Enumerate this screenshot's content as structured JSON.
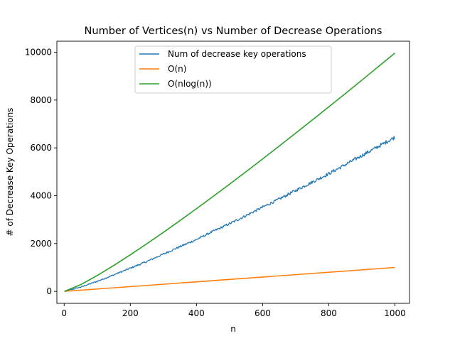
{
  "chart_data": {
    "type": "line",
    "title": "Number of Vertices(n) vs Number of Decrease Operations",
    "xlabel": "n",
    "ylabel": "# of Decrease Key Operations",
    "xlim": [
      -22,
      1044
    ],
    "ylim": [
      -500,
      10460
    ],
    "xticks": [
      0,
      200,
      400,
      600,
      800,
      1000
    ],
    "yticks": [
      0,
      2000,
      4000,
      6000,
      8000,
      10000
    ],
    "xtick_labels": [
      "0",
      "200",
      "400",
      "600",
      "800",
      "1000"
    ],
    "ytick_labels": [
      "0",
      "2000",
      "4000",
      "6000",
      "8000",
      "10000"
    ],
    "legend_position": "upper-center",
    "series": [
      {
        "name": "Num of decrease key operations",
        "color": "#1f77b4",
        "noisy": true,
        "x": [
          1,
          50,
          100,
          150,
          200,
          250,
          300,
          350,
          400,
          450,
          500,
          550,
          600,
          650,
          700,
          750,
          800,
          850,
          900,
          950,
          1000
        ],
        "values": [
          0,
          180,
          420,
          690,
          970,
          1250,
          1560,
          1870,
          2170,
          2510,
          2830,
          3170,
          3520,
          3860,
          4220,
          4570,
          4920,
          5300,
          5680,
          6060,
          6450
        ]
      },
      {
        "name": "O(n)",
        "color": "#ff7f0e",
        "x": [
          1,
          1000
        ],
        "values": [
          1,
          1000
        ]
      },
      {
        "name": "O(nlog(n))",
        "color": "#2ca02c",
        "x": [
          1,
          50,
          100,
          150,
          200,
          250,
          300,
          350,
          400,
          450,
          500,
          550,
          600,
          650,
          700,
          750,
          800,
          850,
          900,
          950,
          1000
        ],
        "values": [
          0,
          282,
          664,
          1084,
          1529,
          1991,
          2469,
          2958,
          3458,
          3966,
          4483,
          5007,
          5537,
          6074,
          6616,
          7163,
          7715,
          8271,
          8832,
          9397,
          9966
        ]
      }
    ]
  }
}
